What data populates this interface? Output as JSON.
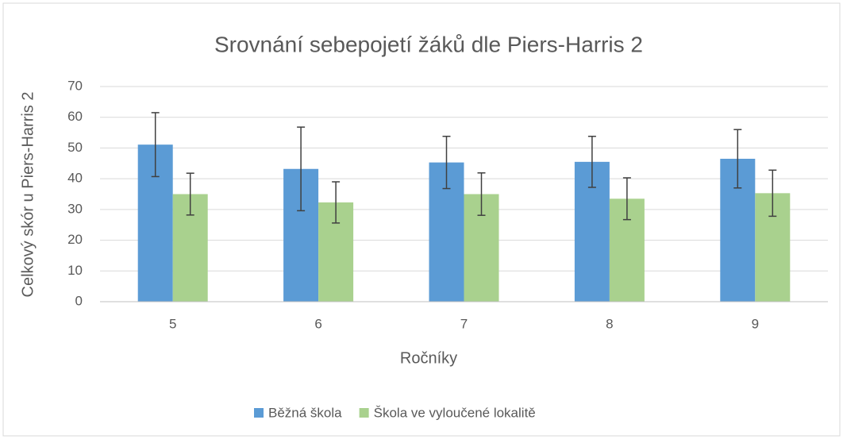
{
  "chart_data": {
    "type": "bar",
    "title": "Srovnání sebepojetí žáků dle Piers-Harris 2",
    "x_label": "Ročníky",
    "y_label": "Celkový skór u Piers-Harris 2",
    "categories": [
      "5",
      "6",
      "7",
      "8",
      "9"
    ],
    "series": [
      {
        "name": "Běžná škola",
        "color": "#5b9bd5",
        "values": [
          51.1,
          43.2,
          45.3,
          45.5,
          46.5
        ],
        "errors": [
          10.4,
          13.6,
          8.5,
          8.3,
          9.5
        ]
      },
      {
        "name": "Škola ve vyloučené lokalitě",
        "color": "#a9d18e",
        "values": [
          35,
          32.3,
          35,
          33.5,
          35.3
        ],
        "errors": [
          6.8,
          6.7,
          6.9,
          6.8,
          7.5
        ]
      }
    ],
    "ylim": [
      0,
      70
    ],
    "yticks": [
      0,
      10,
      20,
      30,
      40,
      50,
      60,
      70
    ],
    "grid": true,
    "legend": "bottom"
  }
}
